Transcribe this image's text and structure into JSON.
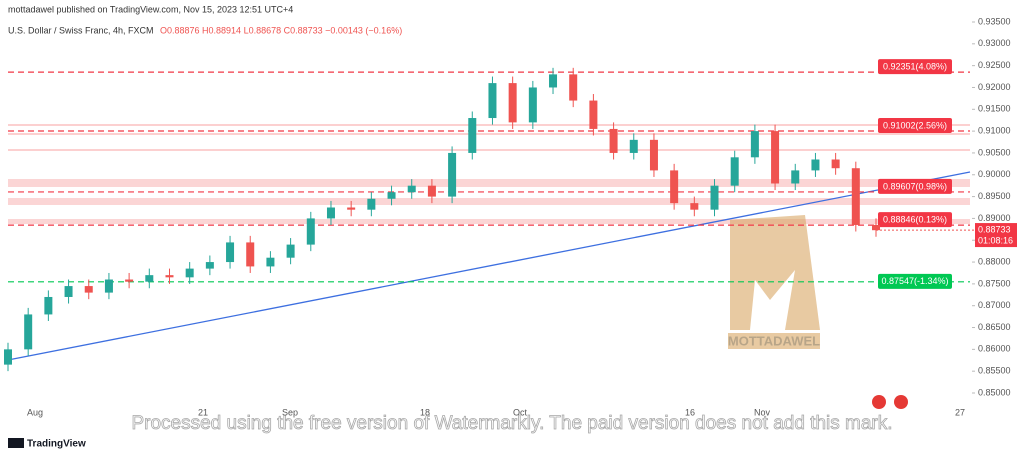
{
  "header": {
    "published": "mottadawel published on TradingView.com, Nov 15, 2023 12:51 UTC+4",
    "symbol": "U.S. Dollar / Swiss Franc, 4h, FXCM",
    "ohlc": "O0.88876 H0.88914 L0.88678 C0.88733 −0.00143 (−0.16%)"
  },
  "chart_data": {
    "type": "candlestick",
    "up_color": "#26a69a",
    "down_color": "#ef5350",
    "open": [
      0.8565,
      0.86,
      0.868,
      0.872,
      0.8745,
      0.873,
      0.876,
      0.8755,
      0.877,
      0.8765,
      0.8785,
      0.88,
      0.8845,
      0.879,
      0.881,
      0.884,
      0.89,
      0.8925,
      0.892,
      0.8945,
      0.896,
      0.8975,
      0.895,
      0.905,
      0.913,
      0.921,
      0.912,
      0.92,
      0.923,
      0.917,
      0.9105,
      0.905,
      0.908,
      0.901,
      0.8935,
      0.892,
      0.8975,
      0.904,
      0.91,
      0.898,
      0.901,
      0.9035,
      0.9015,
      0.8885
    ],
    "high": [
      0.8615,
      0.8695,
      0.8735,
      0.876,
      0.876,
      0.8775,
      0.8775,
      0.8785,
      0.8785,
      0.88,
      0.8815,
      0.886,
      0.886,
      0.8825,
      0.8855,
      0.8915,
      0.894,
      0.894,
      0.896,
      0.8975,
      0.899,
      0.899,
      0.9065,
      0.9145,
      0.9225,
      0.9225,
      0.9215,
      0.9245,
      0.9245,
      0.9185,
      0.912,
      0.9095,
      0.9095,
      0.9025,
      0.895,
      0.899,
      0.9055,
      0.9115,
      0.9115,
      0.9025,
      0.905,
      0.905,
      0.903,
      0.89
    ],
    "low": [
      0.855,
      0.8585,
      0.8665,
      0.8705,
      0.8715,
      0.8715,
      0.874,
      0.874,
      0.875,
      0.875,
      0.877,
      0.8785,
      0.8775,
      0.8775,
      0.8795,
      0.8825,
      0.8885,
      0.8905,
      0.8905,
      0.893,
      0.8945,
      0.8935,
      0.8935,
      0.9035,
      0.9115,
      0.9105,
      0.9105,
      0.9185,
      0.9155,
      0.909,
      0.9035,
      0.9035,
      0.8995,
      0.892,
      0.8905,
      0.8905,
      0.896,
      0.9025,
      0.8965,
      0.8965,
      0.8995,
      0.9,
      0.887,
      0.8858
    ],
    "close": [
      0.86,
      0.868,
      0.872,
      0.8745,
      0.873,
      0.876,
      0.8755,
      0.877,
      0.8765,
      0.8785,
      0.88,
      0.8845,
      0.879,
      0.881,
      0.884,
      0.89,
      0.8925,
      0.892,
      0.8945,
      0.896,
      0.8975,
      0.895,
      0.905,
      0.913,
      0.921,
      0.912,
      0.92,
      0.923,
      0.917,
      0.9105,
      0.905,
      0.908,
      0.901,
      0.8935,
      0.892,
      0.8975,
      0.904,
      0.91,
      0.898,
      0.901,
      0.9035,
      0.9015,
      0.8885,
      0.8873
    ],
    "x_labels": [
      "Aug",
      "21",
      "Sep",
      "18",
      "Oct",
      "16",
      "Nov",
      "27"
    ],
    "ylim": [
      0.85,
      0.935
    ],
    "yticks": [
      {
        "value": 0.935,
        "label": "0.93500"
      },
      {
        "value": 0.93,
        "label": "0.93000"
      },
      {
        "value": 0.925,
        "label": "0.92500"
      },
      {
        "value": 0.92,
        "label": "0.92000"
      },
      {
        "value": 0.915,
        "label": "0.91500"
      },
      {
        "value": 0.91,
        "label": "0.91000"
      },
      {
        "value": 0.905,
        "label": "0.90500"
      },
      {
        "value": 0.9,
        "label": "0.90000"
      },
      {
        "value": 0.895,
        "label": "0.89500"
      },
      {
        "value": 0.89,
        "label": "0.89000"
      },
      {
        "value": 0.885,
        "label": "0.88500"
      },
      {
        "value": 0.88,
        "label": "0.88000"
      },
      {
        "value": 0.875,
        "label": "0.87500"
      },
      {
        "value": 0.87,
        "label": "0.87000"
      },
      {
        "value": 0.865,
        "label": "0.86500"
      },
      {
        "value": 0.86,
        "label": "0.86000"
      },
      {
        "value": 0.855,
        "label": "0.85500"
      },
      {
        "value": 0.85,
        "label": "0.85000"
      }
    ],
    "levels": [
      {
        "value": 0.92351,
        "label": "0.92351(4.08%)",
        "color": "#f23645"
      },
      {
        "value": 0.91002,
        "label": "0.91002(2.56%)",
        "color": "#f23645"
      },
      {
        "value": 0.89607,
        "label": "0.89607(0.98%)",
        "color": "#f23645"
      },
      {
        "value": 0.88846,
        "label": "0.88846(0.13%)",
        "color": "#f23645"
      },
      {
        "value": 0.87547,
        "label": "0.87547(-1.34%)",
        "color": "#00c853"
      }
    ],
    "last_price": 0.88733,
    "countdown": "01:08:16"
  },
  "logo_text": "MOTTADAWEL",
  "watermark": "Processed using the free version of Watermarkly. The paid version does not add this mark.",
  "footer": "TradingView"
}
